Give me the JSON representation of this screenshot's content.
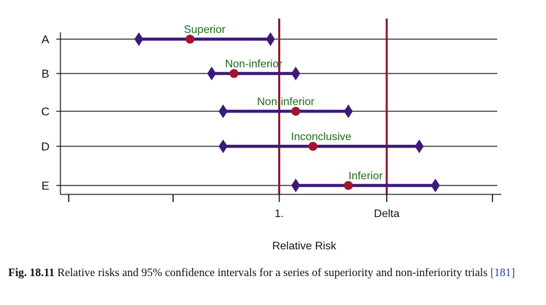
{
  "chart_data": {
    "type": "forest",
    "title": "",
    "xlabel": "Relative Risk",
    "ylabel": "",
    "x_scale": "log",
    "xlim": [
      0.375,
      2.7
    ],
    "x_ticks": [
      {
        "value": 0.375,
        "label": ""
      },
      {
        "value": 0.61,
        "label": ""
      },
      {
        "value": 1.0,
        "label": "1."
      },
      {
        "value": 1.65,
        "label": "Delta"
      },
      {
        "value": 2.7,
        "label": ""
      }
    ],
    "reference_lines": [
      {
        "value": 1.0,
        "color": "#8b1a2b"
      },
      {
        "value": 1.65,
        "color": "#8b1a2b"
      }
    ],
    "grid": "horizontal line at each trial",
    "categories": [
      "A",
      "B",
      "C",
      "D",
      "E"
    ],
    "estimates": [
      {
        "trial": "A",
        "point": 0.66,
        "lower": 0.52,
        "upper": 0.96,
        "annotation": "Superior"
      },
      {
        "trial": "B",
        "point": 0.81,
        "lower": 0.73,
        "upper": 1.08,
        "annotation": "Non-inferior"
      },
      {
        "trial": "C",
        "point": 1.08,
        "lower": 0.77,
        "upper": 1.38,
        "annotation": "Non-inferior"
      },
      {
        "trial": "D",
        "point": 1.17,
        "lower": 0.77,
        "upper": 1.92,
        "annotation": "Inconclusive"
      },
      {
        "trial": "E",
        "point": 1.38,
        "lower": 1.08,
        "upper": 2.07,
        "annotation": "Inferior"
      }
    ],
    "colors": {
      "interval": "#3d1a7a",
      "point": "#a3162a",
      "annotation": "#1b6b1b",
      "reference": "#8b1a2b",
      "axis": "#111111"
    }
  },
  "caption": {
    "figure_number": "Fig. 18.11",
    "text": "Relative risks and 95% confidence intervals for a series of superiority and non-inferiority trials",
    "citation": "[181]"
  }
}
